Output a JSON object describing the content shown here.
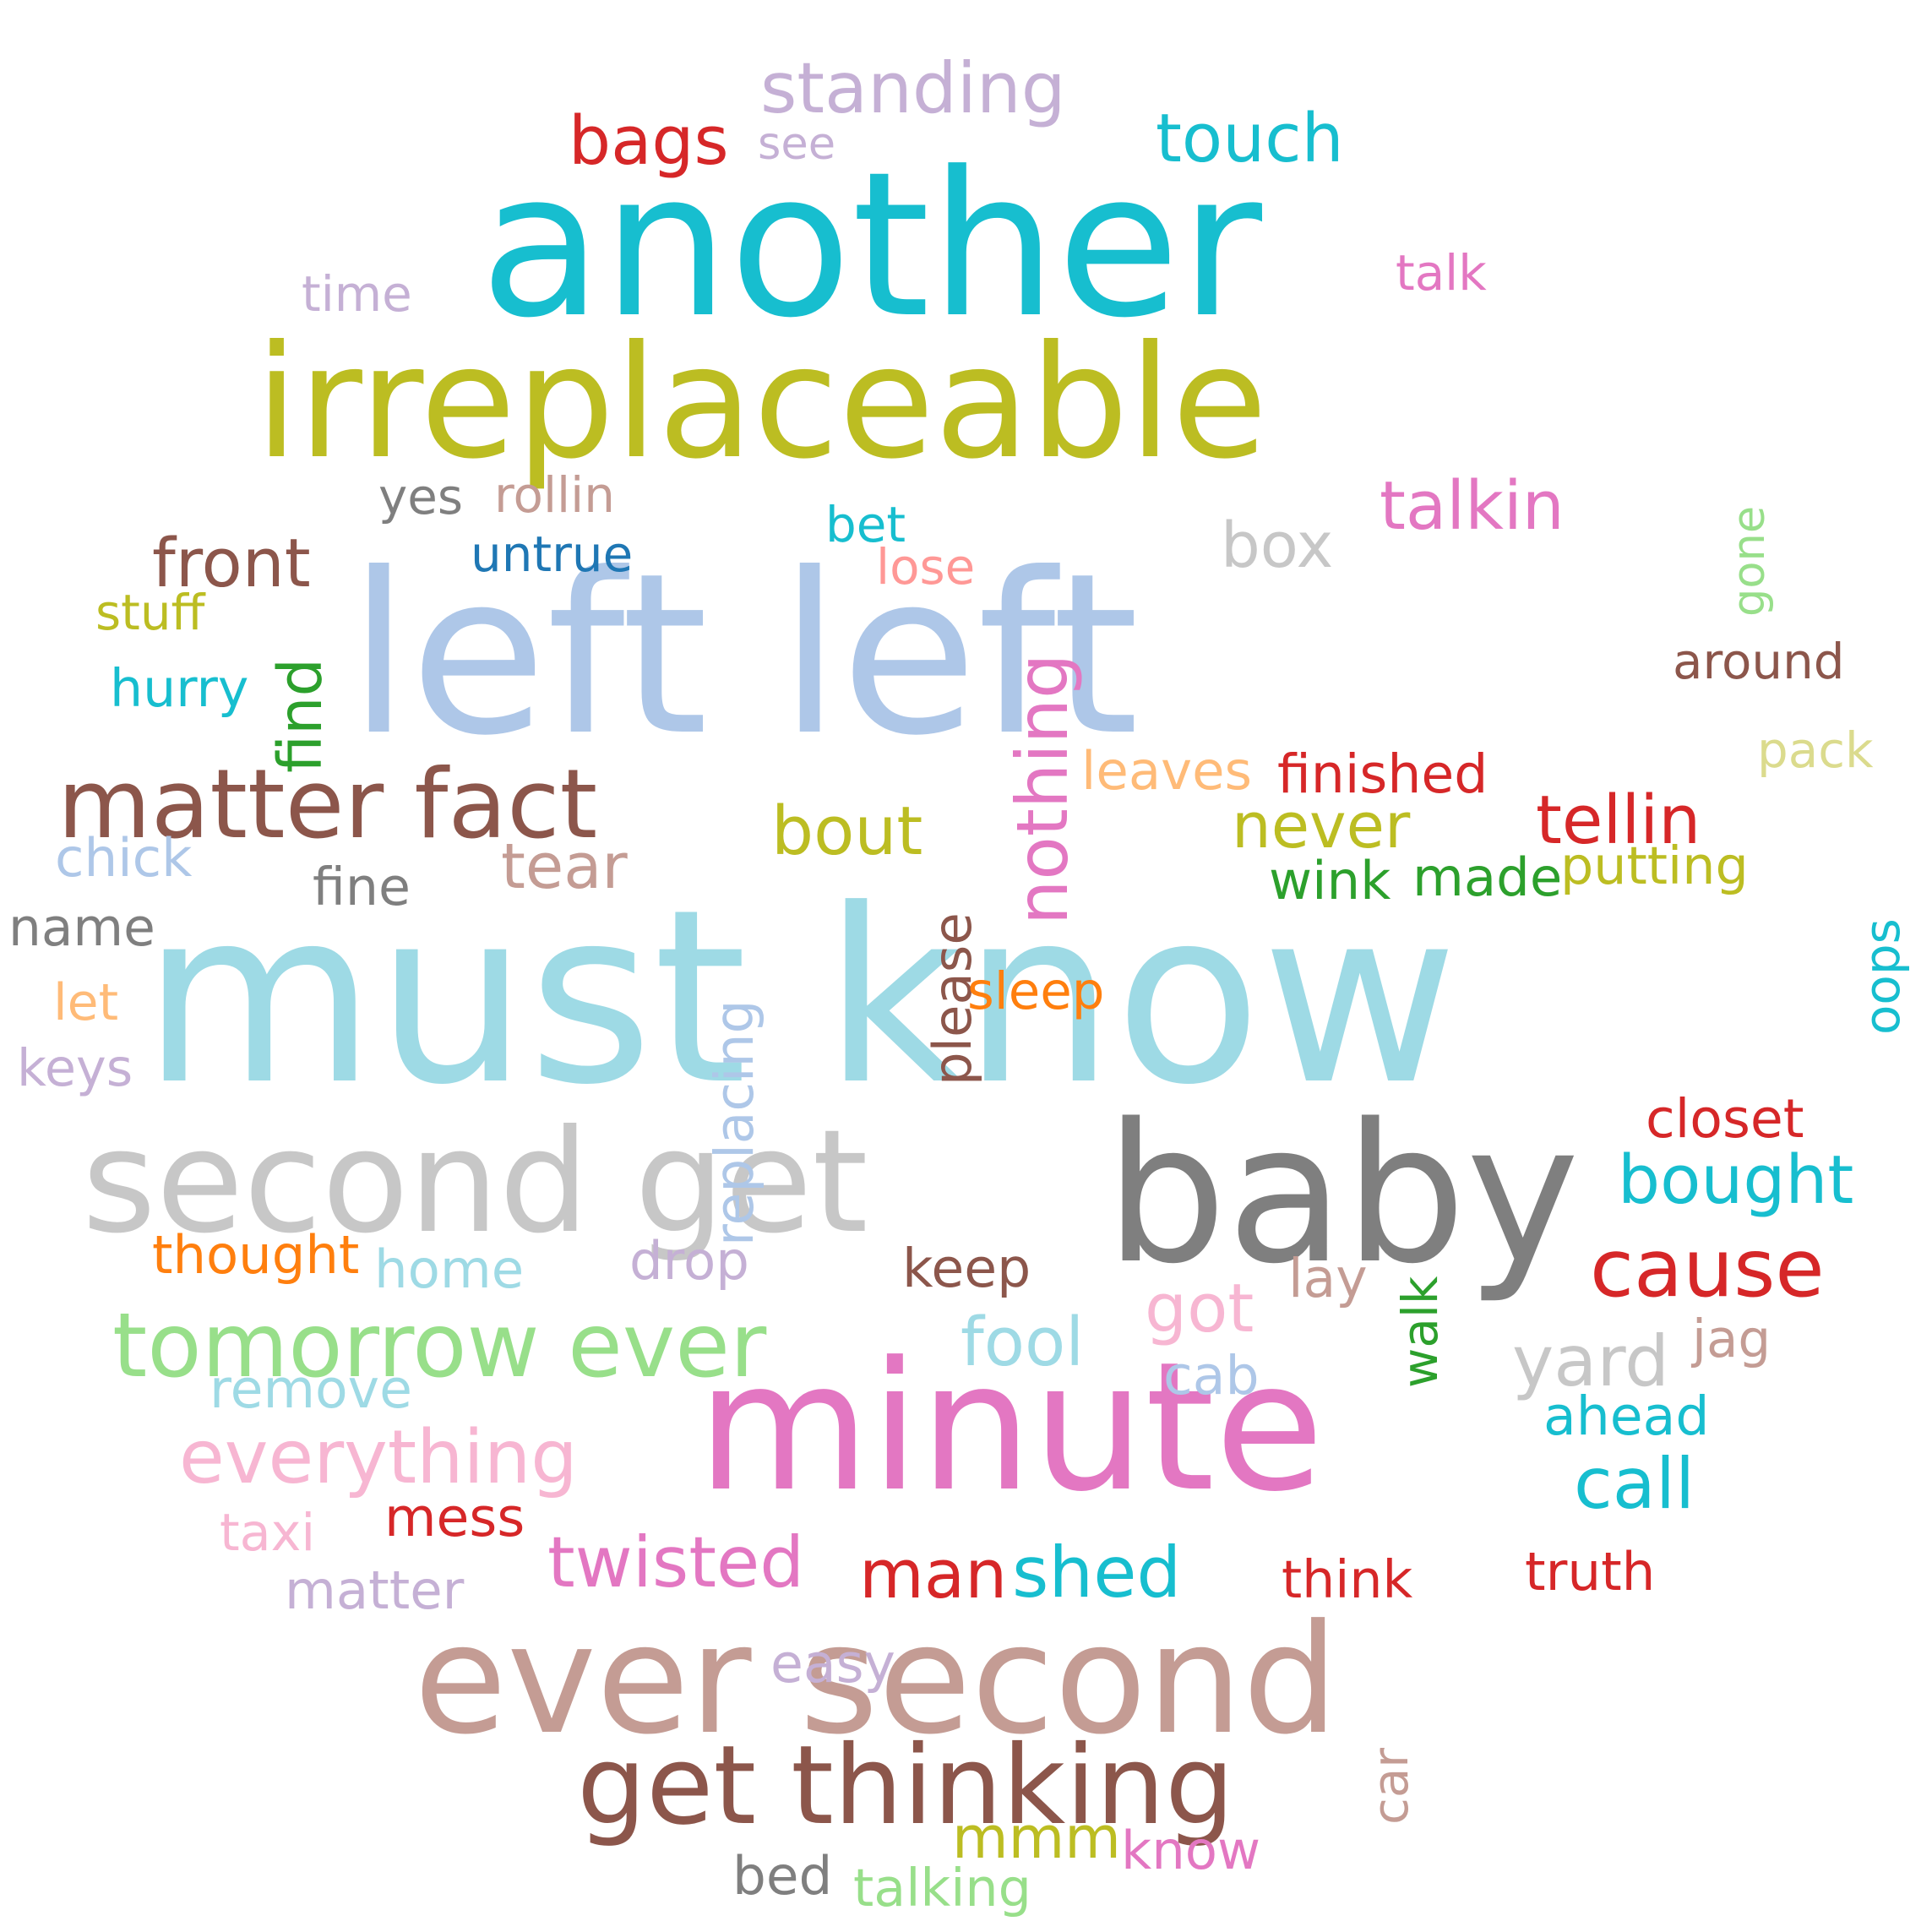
{
  "words": [
    {
      "text": "must know",
      "color": "#9edae5"
    },
    {
      "text": "left left",
      "color": "#aec7e8"
    },
    {
      "text": "another",
      "color": "#17becf"
    },
    {
      "text": "irreplaceable",
      "color": "#bcbd22"
    },
    {
      "text": "minute",
      "color": "#e377c2"
    },
    {
      "text": "baby",
      "color": "#7f7f7f"
    },
    {
      "text": "second get",
      "color": "#c7c7c7"
    },
    {
      "text": "ever second",
      "color": "#c49c94"
    },
    {
      "text": "get thinking",
      "color": "#8c564b"
    },
    {
      "text": "tomorrow ever",
      "color": "#98df8a"
    },
    {
      "text": "matter fact",
      "color": "#8c564b"
    },
    {
      "text": "everything",
      "color": "#f7b6d2"
    },
    {
      "text": "nothing",
      "color": "#e377c2"
    },
    {
      "text": "standing",
      "color": "#c5b0d5"
    },
    {
      "text": "touch",
      "color": "#17becf"
    },
    {
      "text": "bags",
      "color": "#d62728"
    },
    {
      "text": "see",
      "color": "#c5b0d5"
    },
    {
      "text": "talk",
      "color": "#e377c2"
    },
    {
      "text": "time",
      "color": "#c5b0d5"
    },
    {
      "text": "yes",
      "color": "#7f7f7f"
    },
    {
      "text": "rollin",
      "color": "#c49c94"
    },
    {
      "text": "talkin",
      "color": "#e377c2"
    },
    {
      "text": "gone",
      "color": "#98df8a"
    },
    {
      "text": "front",
      "color": "#8c564b"
    },
    {
      "text": "untrue",
      "color": "#1f77b4"
    },
    {
      "text": "bet",
      "color": "#17becf"
    },
    {
      "text": "lose",
      "color": "#ff9896"
    },
    {
      "text": "box",
      "color": "#c7c7c7"
    },
    {
      "text": "stuff",
      "color": "#bcbd22"
    },
    {
      "text": "find",
      "color": "#2ca02c"
    },
    {
      "text": "around",
      "color": "#8c564b"
    },
    {
      "text": "hurry",
      "color": "#17becf"
    },
    {
      "text": "pack",
      "color": "#dbdb8d"
    },
    {
      "text": "leaves",
      "color": "#ffbb78"
    },
    {
      "text": "finished",
      "color": "#d62728"
    },
    {
      "text": "tellin",
      "color": "#d62728"
    },
    {
      "text": "bout",
      "color": "#bcbd22"
    },
    {
      "text": "never",
      "color": "#bcbd22"
    },
    {
      "text": "chick",
      "color": "#aec7e8"
    },
    {
      "text": "tear",
      "color": "#c49c94"
    },
    {
      "text": "fine",
      "color": "#7f7f7f"
    },
    {
      "text": "wink",
      "color": "#2ca02c"
    },
    {
      "text": "made",
      "color": "#2ca02c"
    },
    {
      "text": "putting",
      "color": "#bcbd22"
    },
    {
      "text": "name",
      "color": "#7f7f7f"
    },
    {
      "text": "please",
      "color": "#8c564b"
    },
    {
      "text": "oops",
      "color": "#17becf"
    },
    {
      "text": "let",
      "color": "#ffbb78"
    },
    {
      "text": "replacing",
      "color": "#aec7e8"
    },
    {
      "text": "sleep",
      "color": "#ff7f0e"
    },
    {
      "text": "keys",
      "color": "#c5b0d5"
    },
    {
      "text": "closet",
      "color": "#d62728"
    },
    {
      "text": "bought",
      "color": "#17becf"
    },
    {
      "text": "thought",
      "color": "#ff7f0e"
    },
    {
      "text": "home",
      "color": "#9edae5"
    },
    {
      "text": "drop",
      "color": "#c5b0d5"
    },
    {
      "text": "keep",
      "color": "#8c564b"
    },
    {
      "text": "cause",
      "color": "#d62728"
    },
    {
      "text": "got",
      "color": "#f7b6d2"
    },
    {
      "text": "lay",
      "color": "#c49c94"
    },
    {
      "text": "walk",
      "color": "#2ca02c"
    },
    {
      "text": "fool",
      "color": "#9edae5"
    },
    {
      "text": "yard",
      "color": "#c7c7c7"
    },
    {
      "text": "jag",
      "color": "#c49c94"
    },
    {
      "text": "remove",
      "color": "#9edae5"
    },
    {
      "text": "cab",
      "color": "#aec7e8"
    },
    {
      "text": "ahead",
      "color": "#17becf"
    },
    {
      "text": "call",
      "color": "#17becf"
    },
    {
      "text": "taxi",
      "color": "#f7b6d2"
    },
    {
      "text": "mess",
      "color": "#d62728"
    },
    {
      "text": "twisted",
      "color": "#e377c2"
    },
    {
      "text": "man",
      "color": "#d62728"
    },
    {
      "text": "shed",
      "color": "#17becf"
    },
    {
      "text": "think",
      "color": "#d62728"
    },
    {
      "text": "truth",
      "color": "#d62728"
    },
    {
      "text": "matter",
      "color": "#c5b0d5"
    },
    {
      "text": "easy",
      "color": "#c5b0d5"
    },
    {
      "text": "car",
      "color": "#c49c94"
    },
    {
      "text": "mmm",
      "color": "#bcbd22"
    },
    {
      "text": "know",
      "color": "#e377c2"
    },
    {
      "text": "bed",
      "color": "#7f7f7f"
    },
    {
      "text": "talking",
      "color": "#98df8a"
    }
  ]
}
